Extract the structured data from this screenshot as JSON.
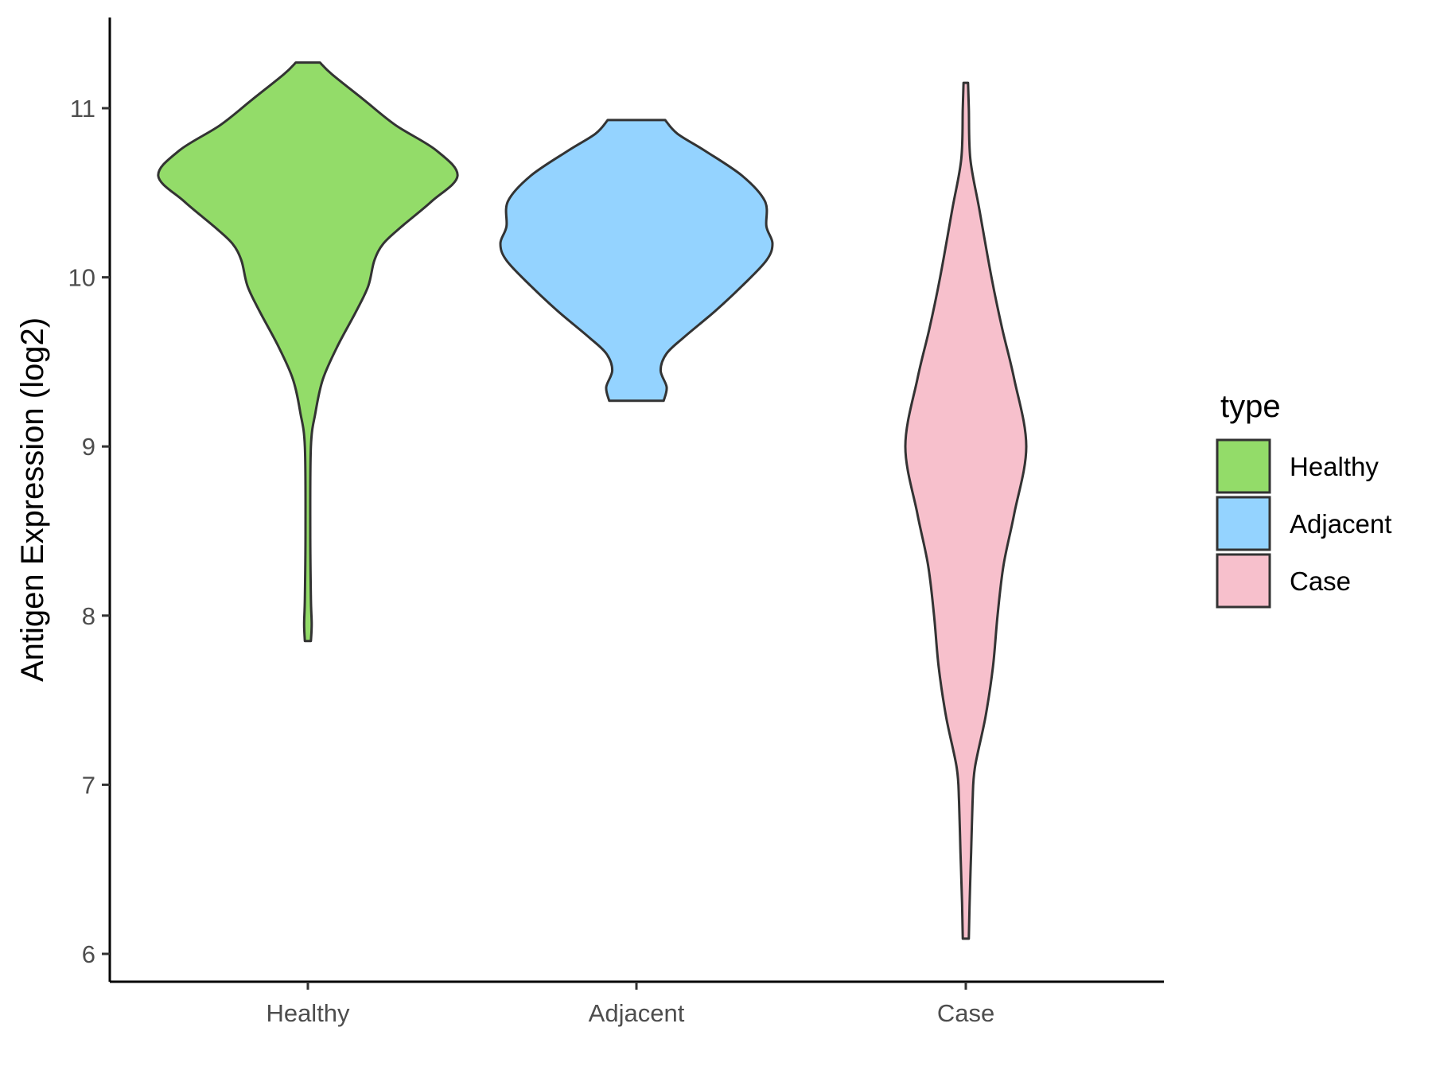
{
  "chart_data": {
    "type": "violin",
    "ylabel": "Antigen Expression (log2)",
    "xlabel": "",
    "categories": [
      "Healthy",
      "Adjacent",
      "Case"
    ],
    "yticks": [
      "6",
      "7",
      "8",
      "9",
      "10",
      "11"
    ],
    "ylim": [
      5.83,
      11.55
    ],
    "grid": false,
    "legend": {
      "title": "type",
      "position": "right",
      "entries": [
        "Healthy",
        "Adjacent",
        "Case"
      ]
    },
    "series": [
      {
        "category": "Healthy",
        "color": "#93dc69",
        "min": 7.85,
        "max": 11.27,
        "profile": [
          [
            7.85,
            0.02
          ],
          [
            7.95,
            0.025
          ],
          [
            8.1,
            0.02
          ],
          [
            8.5,
            0.016
          ],
          [
            9.0,
            0.02
          ],
          [
            9.2,
            0.05
          ],
          [
            9.4,
            0.1
          ],
          [
            9.6,
            0.2
          ],
          [
            9.8,
            0.32
          ],
          [
            9.95,
            0.4
          ],
          [
            10.1,
            0.44
          ],
          [
            10.2,
            0.5
          ],
          [
            10.3,
            0.62
          ],
          [
            10.45,
            0.82
          ],
          [
            10.6,
            0.99
          ],
          [
            10.75,
            0.85
          ],
          [
            10.9,
            0.58
          ],
          [
            11.05,
            0.37
          ],
          [
            11.2,
            0.16
          ],
          [
            11.27,
            0.08
          ]
        ]
      },
      {
        "category": "Adjacent",
        "color": "#94d3ff",
        "min": 9.27,
        "max": 10.93,
        "profile": [
          [
            9.27,
            0.18
          ],
          [
            9.35,
            0.2
          ],
          [
            9.45,
            0.16
          ],
          [
            9.55,
            0.2
          ],
          [
            9.65,
            0.32
          ],
          [
            9.8,
            0.52
          ],
          [
            9.95,
            0.7
          ],
          [
            10.1,
            0.86
          ],
          [
            10.2,
            0.9
          ],
          [
            10.3,
            0.86
          ],
          [
            10.45,
            0.85
          ],
          [
            10.6,
            0.7
          ],
          [
            10.75,
            0.45
          ],
          [
            10.85,
            0.27
          ],
          [
            10.93,
            0.19
          ]
        ]
      },
      {
        "category": "Case",
        "color": "#f7c0cc",
        "min": 6.09,
        "max": 11.15,
        "profile": [
          [
            6.09,
            0.02
          ],
          [
            6.3,
            0.025
          ],
          [
            6.6,
            0.035
          ],
          [
            6.9,
            0.045
          ],
          [
            7.1,
            0.06
          ],
          [
            7.4,
            0.13
          ],
          [
            7.7,
            0.18
          ],
          [
            8.0,
            0.21
          ],
          [
            8.3,
            0.25
          ],
          [
            8.6,
            0.32
          ],
          [
            9.0,
            0.4
          ],
          [
            9.4,
            0.32
          ],
          [
            9.7,
            0.24
          ],
          [
            10.0,
            0.17
          ],
          [
            10.4,
            0.09
          ],
          [
            10.7,
            0.03
          ],
          [
            11.0,
            0.02
          ],
          [
            11.15,
            0.015
          ]
        ]
      }
    ]
  }
}
